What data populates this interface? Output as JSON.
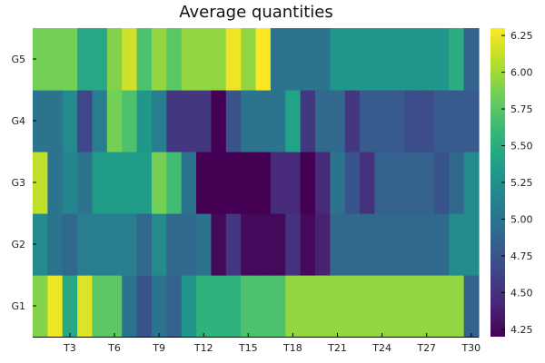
{
  "chart_data": {
    "type": "heatmap",
    "title": "Average quantities",
    "xlabel": "",
    "ylabel": "",
    "columns": [
      "T1",
      "T2",
      "T3",
      "T4",
      "T5",
      "T6",
      "T7",
      "T8",
      "T9",
      "T10",
      "T11",
      "T12",
      "T13",
      "T14",
      "T15",
      "T16",
      "T17",
      "T18",
      "T19",
      "T20",
      "T21",
      "T22",
      "T23",
      "T24",
      "T25",
      "T26",
      "T27",
      "T28",
      "T29",
      "T30"
    ],
    "rows": [
      "G1",
      "G2",
      "G3",
      "G4",
      "G5"
    ],
    "x_tick_labels": [
      "T3",
      "T6",
      "T9",
      "T12",
      "T15",
      "T18",
      "T21",
      "T24",
      "T27",
      "T30"
    ],
    "y_tick_labels": [
      "G1",
      "G2",
      "G3",
      "G4",
      "G5"
    ],
    "values": [
      [
        5.9,
        6.25,
        5.45,
        6.2,
        5.75,
        5.75,
        5.0,
        4.75,
        5.0,
        4.85,
        5.3,
        5.55,
        5.55,
        5.55,
        5.7,
        5.7,
        5.7,
        5.95,
        5.95,
        5.95,
        5.95,
        5.95,
        5.95,
        5.95,
        5.95,
        5.95,
        5.95,
        5.95,
        5.95,
        4.85
      ],
      [
        5.2,
        5.0,
        4.9,
        5.1,
        5.1,
        5.1,
        5.1,
        4.9,
        5.2,
        4.9,
        4.9,
        5.0,
        4.25,
        4.55,
        4.25,
        4.25,
        4.25,
        4.5,
        4.25,
        4.4,
        4.9,
        4.9,
        4.9,
        4.9,
        4.9,
        4.9,
        4.9,
        4.9,
        5.2,
        5.2
      ],
      [
        6.1,
        5.0,
        5.15,
        5.0,
        5.35,
        5.35,
        5.35,
        5.35,
        5.85,
        5.65,
        5.0,
        4.2,
        4.2,
        4.2,
        4.2,
        4.2,
        4.45,
        4.45,
        4.2,
        4.45,
        5.0,
        4.75,
        4.5,
        4.85,
        4.85,
        4.85,
        4.85,
        4.75,
        4.9,
        5.2
      ],
      [
        5.0,
        5.0,
        5.2,
        4.65,
        5.1,
        5.85,
        5.7,
        5.3,
        5.1,
        4.55,
        4.55,
        4.55,
        4.2,
        4.75,
        5.0,
        5.0,
        5.0,
        5.4,
        4.55,
        4.9,
        4.9,
        4.55,
        4.8,
        4.8,
        4.8,
        4.7,
        4.7,
        4.8,
        4.8,
        4.8
      ],
      [
        5.85,
        5.85,
        5.85,
        5.45,
        5.45,
        5.9,
        6.15,
        5.7,
        5.95,
        5.75,
        5.95,
        5.95,
        5.95,
        6.25,
        5.95,
        6.3,
        5.0,
        5.0,
        5.0,
        5.0,
        5.3,
        5.3,
        5.3,
        5.3,
        5.3,
        5.3,
        5.3,
        5.3,
        5.5,
        4.85
      ]
    ],
    "colorscale": "viridis",
    "color_range": [
      4.2,
      6.3
    ],
    "colorbar_tick_labels": [
      "4.25",
      "4.50",
      "4.75",
      "5.00",
      "5.25",
      "5.50",
      "5.75",
      "6.00",
      "6.25"
    ],
    "colorbar_ticks": [
      4.25,
      4.5,
      4.75,
      5.0,
      5.25,
      5.5,
      5.75,
      6.0,
      6.25
    ],
    "grid": false,
    "legend": "colorbar-right"
  }
}
